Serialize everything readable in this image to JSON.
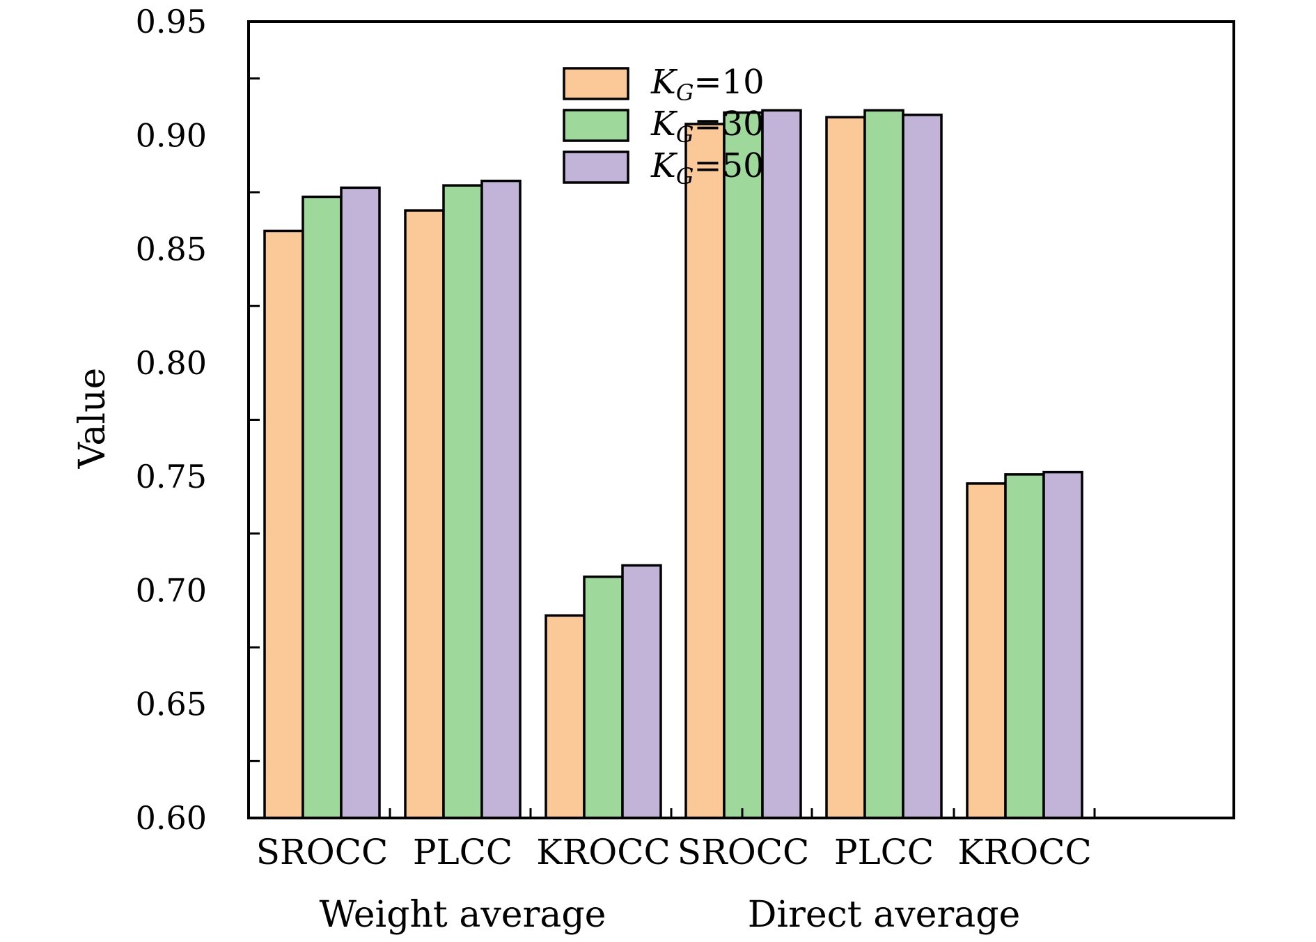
{
  "chart_data": {
    "type": "bar",
    "ylabel": "Value",
    "ylim": [
      0.6,
      0.95
    ],
    "yticks": [
      "0.60",
      "0.65",
      "0.70",
      "0.75",
      "0.80",
      "0.85",
      "0.90",
      "0.95"
    ],
    "groups": [
      {
        "name": "Weight average",
        "categories": [
          "SROCC",
          "PLCC",
          "KROCC"
        ]
      },
      {
        "name": "Direct average",
        "categories": [
          "SROCC",
          "PLCC",
          "KROCC"
        ]
      }
    ],
    "series": [
      {
        "name": "K_G = 10",
        "symbol": "K",
        "sub": "G",
        "rel": "=",
        "num": "10",
        "color": "#fbc997",
        "values": [
          0.858,
          0.867,
          0.689,
          0.905,
          0.908,
          0.747
        ]
      },
      {
        "name": "K_G = 30",
        "symbol": "K",
        "sub": "G",
        "rel": "=",
        "num": "30",
        "color": "#9ed99b",
        "values": [
          0.873,
          0.878,
          0.706,
          0.91,
          0.911,
          0.751
        ]
      },
      {
        "name": "K_G = 50",
        "symbol": "K",
        "sub": "G",
        "rel": "=",
        "num": "50",
        "color": "#c2b3d8",
        "values": [
          0.877,
          0.88,
          0.711,
          0.911,
          0.909,
          0.752
        ]
      }
    ],
    "legend_position": "top-center",
    "grid": false
  }
}
